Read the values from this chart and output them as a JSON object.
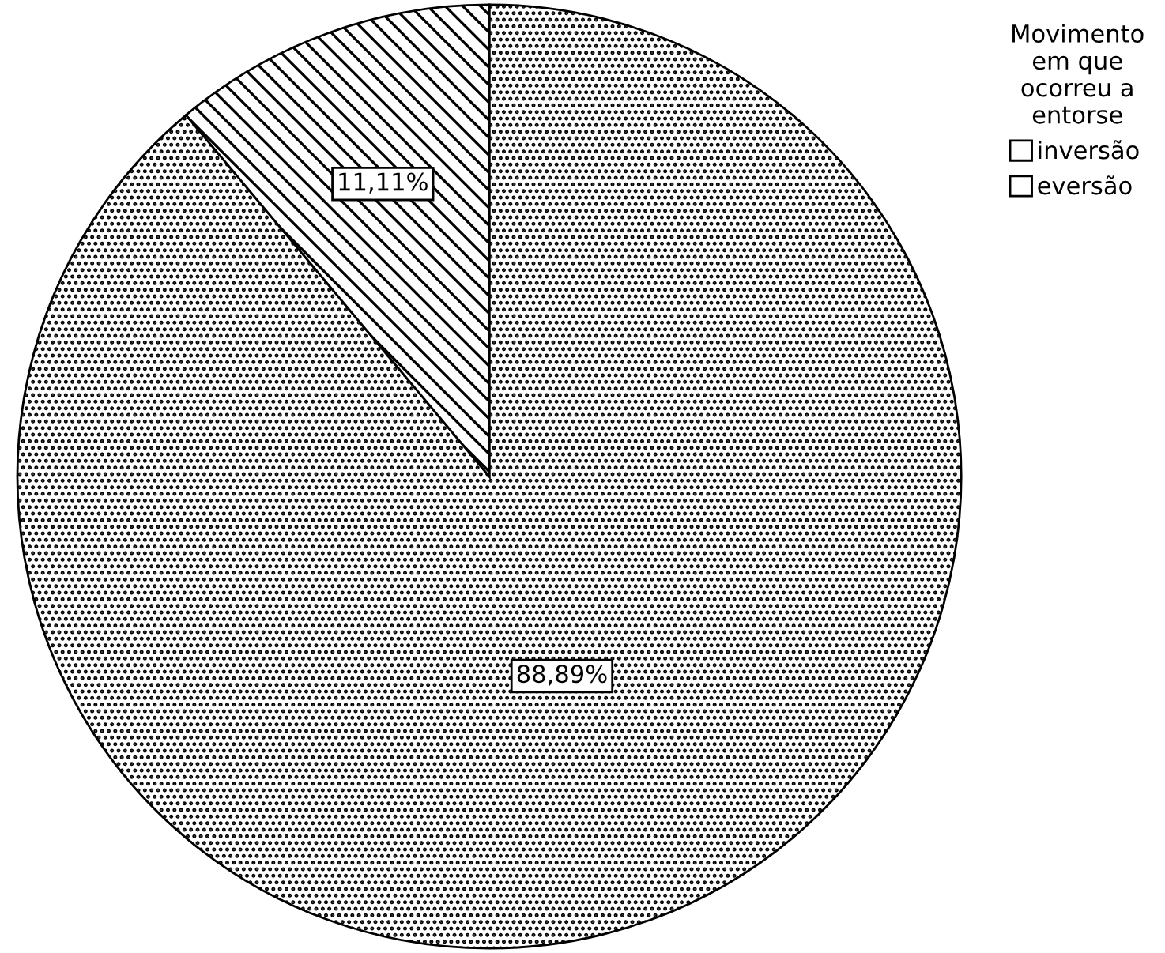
{
  "chart_data": {
    "type": "pie",
    "legend_title": "Movimento\nem que\nocorreu a\nentorse",
    "categories": [
      "inversão",
      "eversão"
    ],
    "values": [
      88.89,
      11.11
    ],
    "colors": [
      "#ffffff",
      "#ffffff"
    ],
    "value_labels": [
      "88,89%",
      "11,11%"
    ],
    "legend": "top right"
  }
}
